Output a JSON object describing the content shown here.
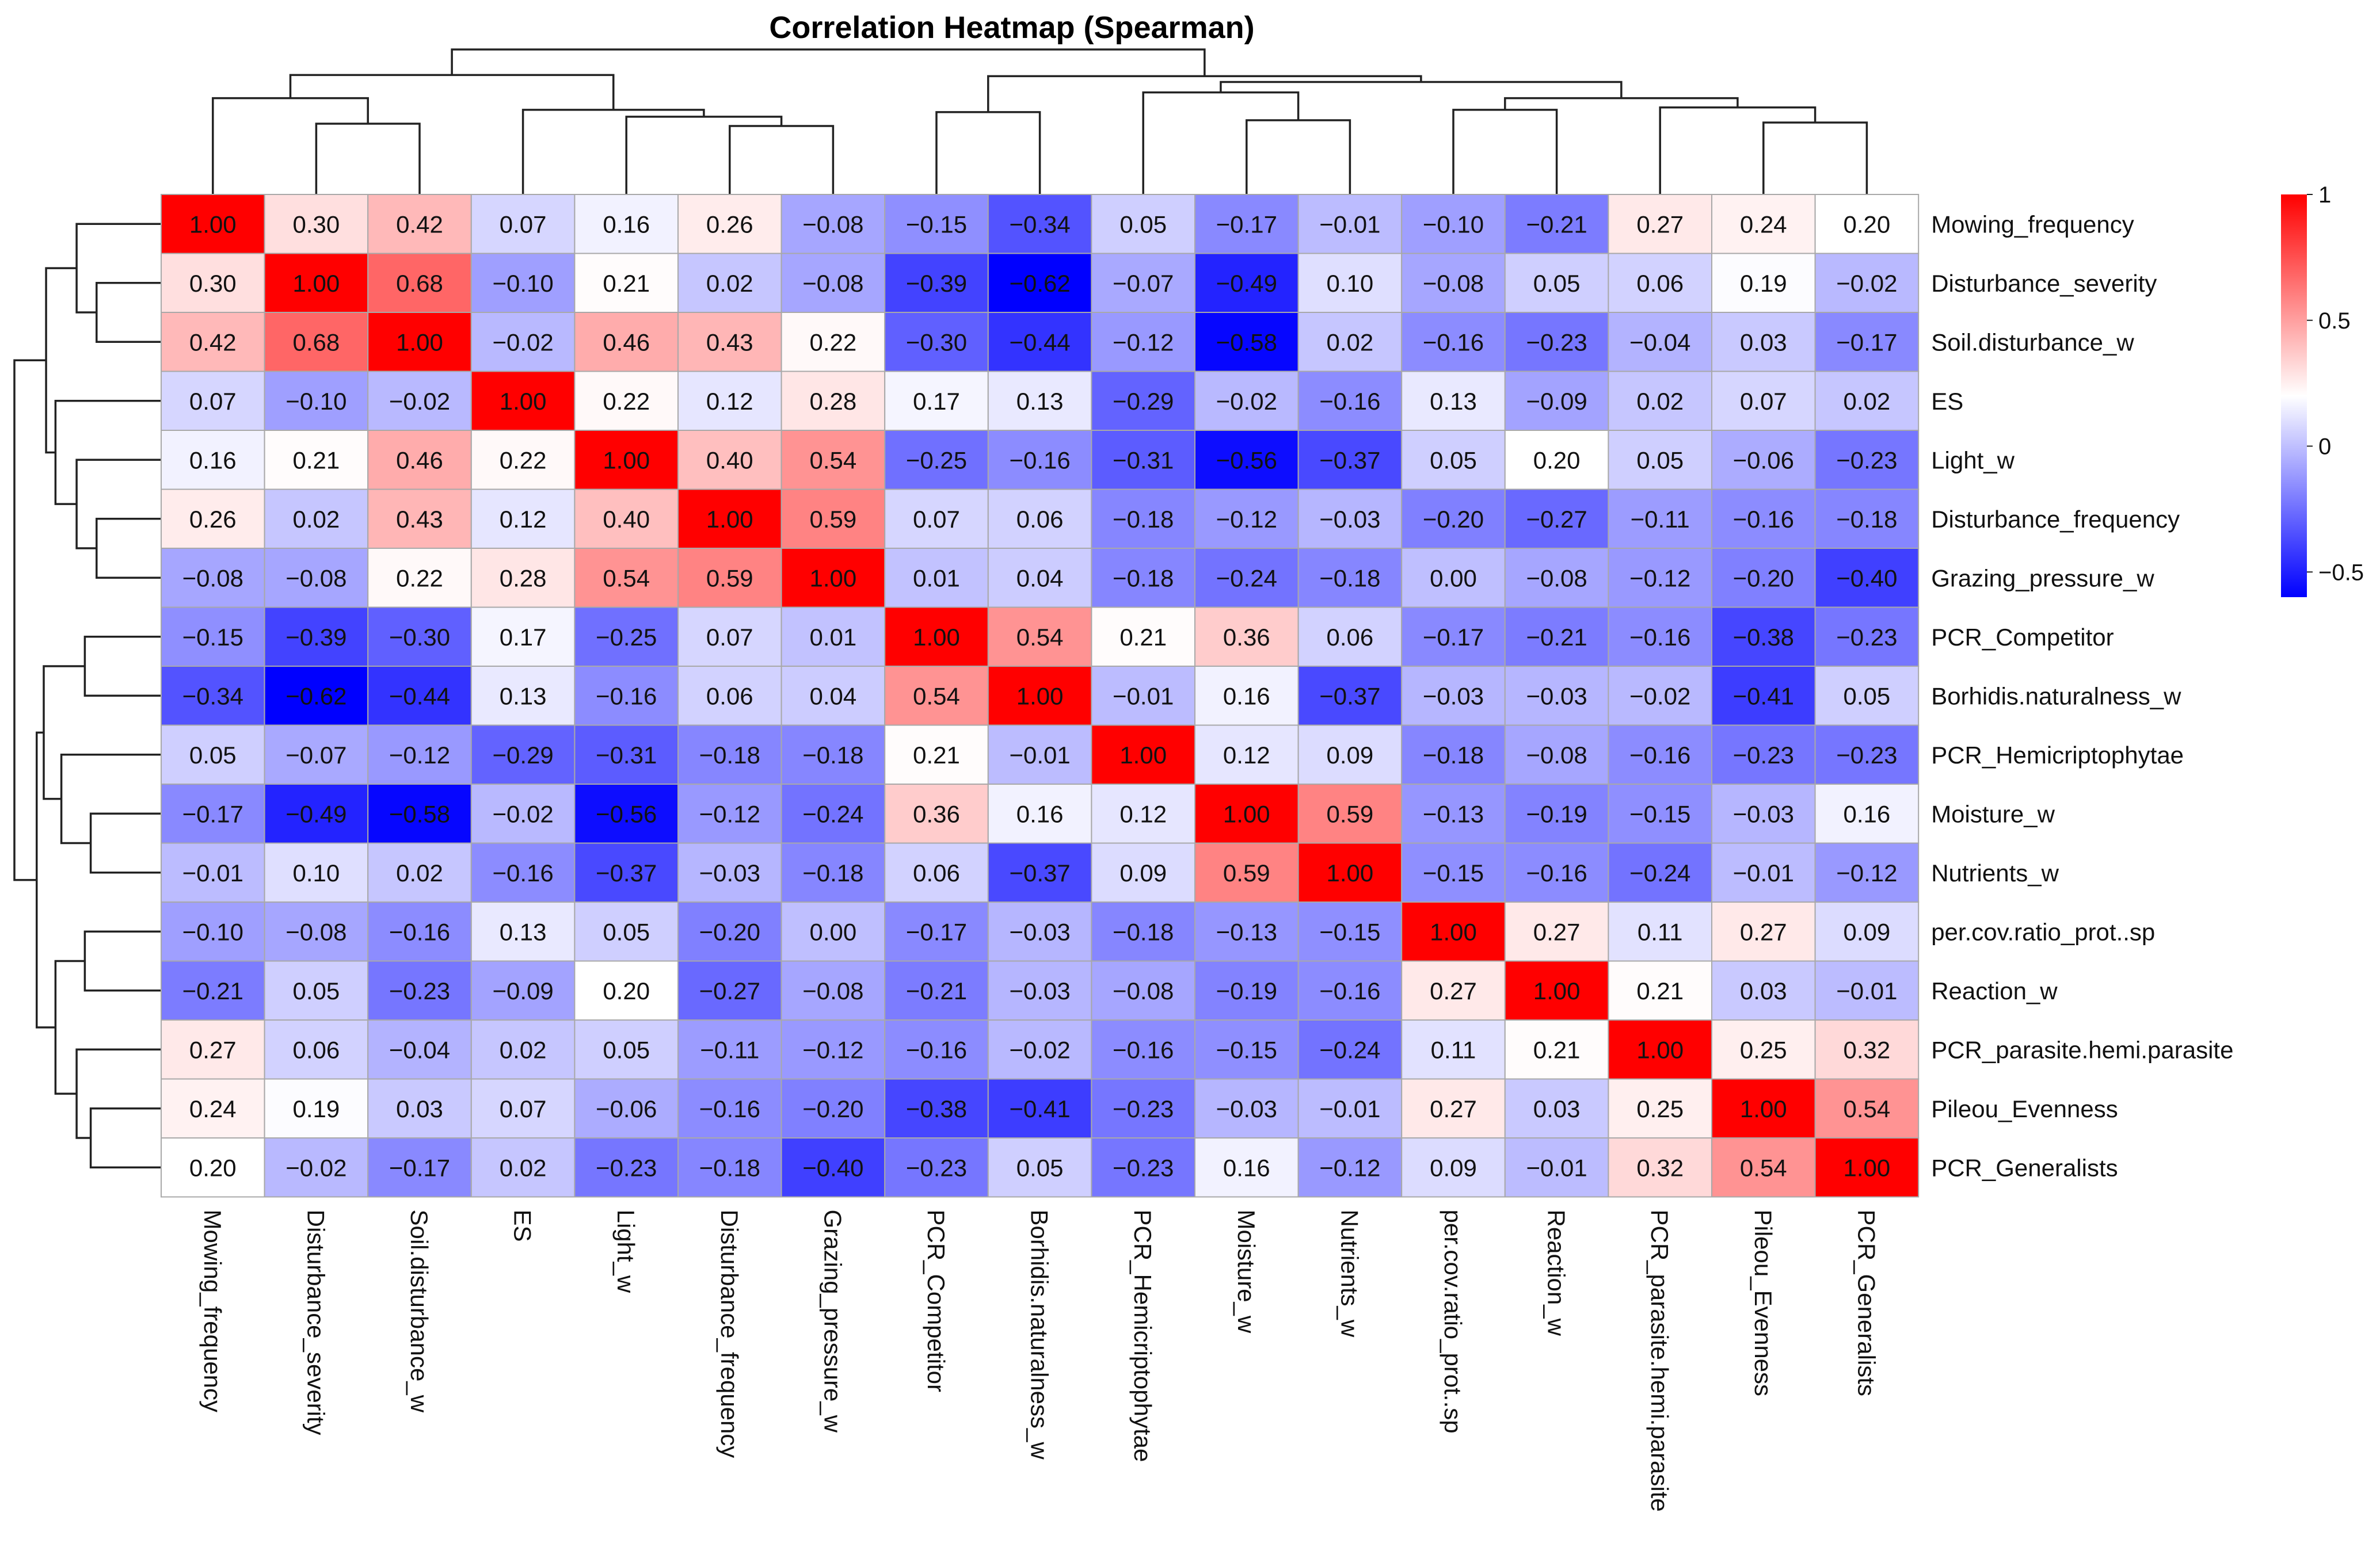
{
  "chart_data": {
    "type": "heatmap",
    "title": "Correlation Heatmap (Spearman)",
    "variables": [
      "Mowing_frequency",
      "Disturbance_severity",
      "Soil.disturbance_w",
      "ES",
      "Light_w",
      "Disturbance_frequency",
      "Grazing_pressure_w",
      "PCR_Competitor",
      "Borhidis.naturalness_w",
      "PCR_Hemicriptophytae",
      "Moisture_w",
      "Nutrients_w",
      "per.cov.ratio_prot..sp",
      "Reaction_w",
      "PCR_parasite.hemi.parasite",
      "Pileou_Evenness",
      "PCR_Generalists"
    ],
    "values": [
      [
        "1.00",
        "0.30",
        "0.42",
        "0.07",
        "0.16",
        "0.26",
        "−0.08",
        "−0.15",
        "−0.34",
        "0.05",
        "−0.17",
        "−0.01",
        "−0.10",
        "−0.21",
        "0.27",
        "0.24",
        "0.20"
      ],
      [
        "0.30",
        "1.00",
        "0.68",
        "−0.10",
        "0.21",
        "0.02",
        "−0.08",
        "−0.39",
        "−0.62",
        "−0.07",
        "−0.49",
        "0.10",
        "−0.08",
        "0.05",
        "0.06",
        "0.19",
        "−0.02"
      ],
      [
        "0.42",
        "0.68",
        "1.00",
        "−0.02",
        "0.46",
        "0.43",
        "0.22",
        "−0.30",
        "−0.44",
        "−0.12",
        "−0.58",
        "0.02",
        "−0.16",
        "−0.23",
        "−0.04",
        "0.03",
        "−0.17"
      ],
      [
        "0.07",
        "−0.10",
        "−0.02",
        "1.00",
        "0.22",
        "0.12",
        "0.28",
        "0.17",
        "0.13",
        "−0.29",
        "−0.02",
        "−0.16",
        "0.13",
        "−0.09",
        "0.02",
        "0.07",
        "0.02"
      ],
      [
        "0.16",
        "0.21",
        "0.46",
        "0.22",
        "1.00",
        "0.40",
        "0.54",
        "−0.25",
        "−0.16",
        "−0.31",
        "−0.56",
        "−0.37",
        "0.05",
        "0.20",
        "0.05",
        "−0.06",
        "−0.23"
      ],
      [
        "0.26",
        "0.02",
        "0.43",
        "0.12",
        "0.40",
        "1.00",
        "0.59",
        "0.07",
        "0.06",
        "−0.18",
        "−0.12",
        "−0.03",
        "−0.20",
        "−0.27",
        "−0.11",
        "−0.16",
        "−0.18"
      ],
      [
        "−0.08",
        "−0.08",
        "0.22",
        "0.28",
        "0.54",
        "0.59",
        "1.00",
        "0.01",
        "0.04",
        "−0.18",
        "−0.24",
        "−0.18",
        "0.00",
        "−0.08",
        "−0.12",
        "−0.20",
        "−0.40"
      ],
      [
        "−0.15",
        "−0.39",
        "−0.30",
        "0.17",
        "−0.25",
        "0.07",
        "0.01",
        "1.00",
        "0.54",
        "0.21",
        "0.36",
        "0.06",
        "−0.17",
        "−0.21",
        "−0.16",
        "−0.38",
        "−0.23"
      ],
      [
        "−0.34",
        "−0.62",
        "−0.44",
        "0.13",
        "−0.16",
        "0.06",
        "0.04",
        "0.54",
        "1.00",
        "−0.01",
        "0.16",
        "−0.37",
        "−0.03",
        "−0.03",
        "−0.02",
        "−0.41",
        "0.05"
      ],
      [
        "0.05",
        "−0.07",
        "−0.12",
        "−0.29",
        "−0.31",
        "−0.18",
        "−0.18",
        "0.21",
        "−0.01",
        "1.00",
        "0.12",
        "0.09",
        "−0.18",
        "−0.08",
        "−0.16",
        "−0.23",
        "−0.23"
      ],
      [
        "−0.17",
        "−0.49",
        "−0.58",
        "−0.02",
        "−0.56",
        "−0.12",
        "−0.24",
        "0.36",
        "0.16",
        "0.12",
        "1.00",
        "0.59",
        "−0.13",
        "−0.19",
        "−0.15",
        "−0.03",
        "0.16"
      ],
      [
        "−0.01",
        "0.10",
        "0.02",
        "−0.16",
        "−0.37",
        "−0.03",
        "−0.18",
        "0.06",
        "−0.37",
        "0.09",
        "0.59",
        "1.00",
        "−0.15",
        "−0.16",
        "−0.24",
        "−0.01",
        "−0.12"
      ],
      [
        "−0.10",
        "−0.08",
        "−0.16",
        "0.13",
        "0.05",
        "−0.20",
        "0.00",
        "−0.17",
        "−0.03",
        "−0.18",
        "−0.13",
        "−0.15",
        "1.00",
        "0.27",
        "0.11",
        "0.27",
        "0.09"
      ],
      [
        "−0.21",
        "0.05",
        "−0.23",
        "−0.09",
        "0.20",
        "−0.27",
        "−0.08",
        "−0.21",
        "−0.03",
        "−0.08",
        "−0.19",
        "−0.16",
        "0.27",
        "1.00",
        "0.21",
        "0.03",
        "−0.01"
      ],
      [
        "0.27",
        "0.06",
        "−0.04",
        "0.02",
        "0.05",
        "−0.11",
        "−0.12",
        "−0.16",
        "−0.02",
        "−0.16",
        "−0.15",
        "−0.24",
        "0.11",
        "0.21",
        "1.00",
        "0.25",
        "0.32"
      ],
      [
        "0.24",
        "0.19",
        "0.03",
        "0.07",
        "−0.06",
        "−0.16",
        "−0.20",
        "−0.38",
        "−0.41",
        "−0.23",
        "−0.03",
        "−0.01",
        "0.27",
        "0.03",
        "0.25",
        "1.00",
        "0.54"
      ],
      [
        "0.20",
        "−0.02",
        "−0.17",
        "0.02",
        "−0.23",
        "−0.18",
        "−0.40",
        "−0.23",
        "0.05",
        "−0.23",
        "0.16",
        "−0.12",
        "0.09",
        "−0.01",
        "0.32",
        "0.54",
        "1.00"
      ]
    ],
    "color_scale": {
      "low": "#0000ff",
      "mid": "#ffffff",
      "high": "#ff0000",
      "range": [
        -0.6,
        1.0
      ],
      "midpoint": 0.2
    },
    "legend": {
      "ticks": [
        "1",
        "0.5",
        "0",
        "−0.5"
      ],
      "tick_values": [
        1,
        0.5,
        0,
        -0.5
      ],
      "placement": "top-right"
    },
    "dendrogram": {
      "col_merges": [
        {
          "a": 5,
          "b": 6,
          "h": 0.59
        },
        {
          "a": 1,
          "b": 2,
          "h": 0.61
        },
        {
          "a": 4,
          "b": "m0",
          "h": 0.67
        },
        {
          "a": 0,
          "b": "m1",
          "h": 0.83
        },
        {
          "a": 3,
          "b": "m2",
          "h": 0.73
        },
        {
          "a": "m3",
          "b": "m4",
          "h": 1.03
        },
        {
          "a": 15,
          "b": 16,
          "h": 0.62
        },
        {
          "a": 14,
          "b": "m6",
          "h": 0.75
        },
        {
          "a": 12,
          "b": 13,
          "h": 0.73
        },
        {
          "a": "m8",
          "b": "m7",
          "h": 0.83
        },
        {
          "a": 10,
          "b": 11,
          "h": 0.64
        },
        {
          "a": 9,
          "b": "m10",
          "h": 0.88
        },
        {
          "a": "m11",
          "b": "m9",
          "h": 0.97
        },
        {
          "a": 7,
          "b": 8,
          "h": 0.71
        },
        {
          "a": "m13",
          "b": "m12",
          "h": 1.02
        },
        {
          "a": "m5",
          "b": "m14",
          "h": 1.25
        }
      ],
      "row_merges": [
        {
          "a": 1,
          "b": 2,
          "h": 0.55
        },
        {
          "a": 0,
          "b": "m0",
          "h": 0.72
        },
        {
          "a": 5,
          "b": 6,
          "h": 0.55
        },
        {
          "a": 4,
          "b": "m2",
          "h": 0.72
        },
        {
          "a": 3,
          "b": "m3",
          "h": 0.9
        },
        {
          "a": "m1",
          "b": "m4",
          "h": 0.98
        },
        {
          "a": 7,
          "b": 8,
          "h": 0.65
        },
        {
          "a": 10,
          "b": 11,
          "h": 0.6
        },
        {
          "a": 9,
          "b": "m7",
          "h": 0.85
        },
        {
          "a": "m6",
          "b": "m8",
          "h": 1.0
        },
        {
          "a": 12,
          "b": 13,
          "h": 0.65
        },
        {
          "a": 15,
          "b": 16,
          "h": 0.6
        },
        {
          "a": 14,
          "b": "m11",
          "h": 0.72
        },
        {
          "a": "m10",
          "b": "m12",
          "h": 0.9
        },
        {
          "a": "m9",
          "b": "m13",
          "h": 1.06
        },
        {
          "a": "m5",
          "b": "m14",
          "h": 1.25
        }
      ]
    }
  }
}
